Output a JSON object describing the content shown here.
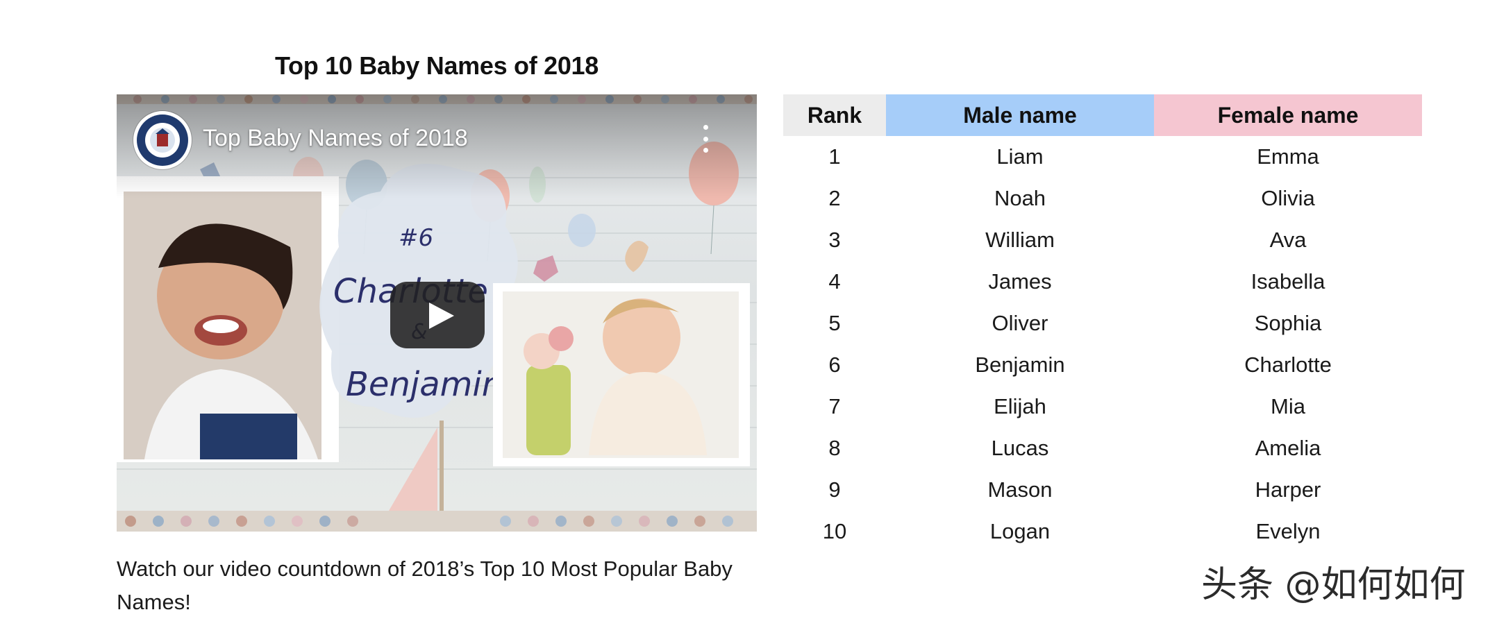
{
  "page": {
    "title": "Top 10 Baby Names of 2018",
    "caption": "Watch our video countdown of 2018’s Top 10 Most Popular Baby Names!"
  },
  "video": {
    "title": "Top Baby Names of 2018",
    "channel_logo": "social-security-administration-seal",
    "thumbnail_text": {
      "number": "#6",
      "name1": "Charlotte",
      "ampersand": "&",
      "name2": "Benjamin"
    }
  },
  "table": {
    "headers": {
      "rank": "Rank",
      "male": "Male name",
      "female": "Female name"
    },
    "rows": [
      {
        "rank": "1",
        "male": "Liam",
        "female": "Emma"
      },
      {
        "rank": "2",
        "male": "Noah",
        "female": "Olivia"
      },
      {
        "rank": "3",
        "male": "William",
        "female": "Ava"
      },
      {
        "rank": "4",
        "male": "James",
        "female": "Isabella"
      },
      {
        "rank": "5",
        "male": "Oliver",
        "female": "Sophia"
      },
      {
        "rank": "6",
        "male": "Benjamin",
        "female": "Charlotte"
      },
      {
        "rank": "7",
        "male": "Elijah",
        "female": "Mia"
      },
      {
        "rank": "8",
        "male": "Lucas",
        "female": "Amelia"
      },
      {
        "rank": "9",
        "male": "Mason",
        "female": "Harper"
      },
      {
        "rank": "10",
        "male": "Logan",
        "female": "Evelyn"
      }
    ]
  },
  "colors": {
    "rank_header": "#ececec",
    "male_header": "#a6cdf9",
    "female_header": "#f5c6d1"
  },
  "watermark": "头条 @如何如何"
}
